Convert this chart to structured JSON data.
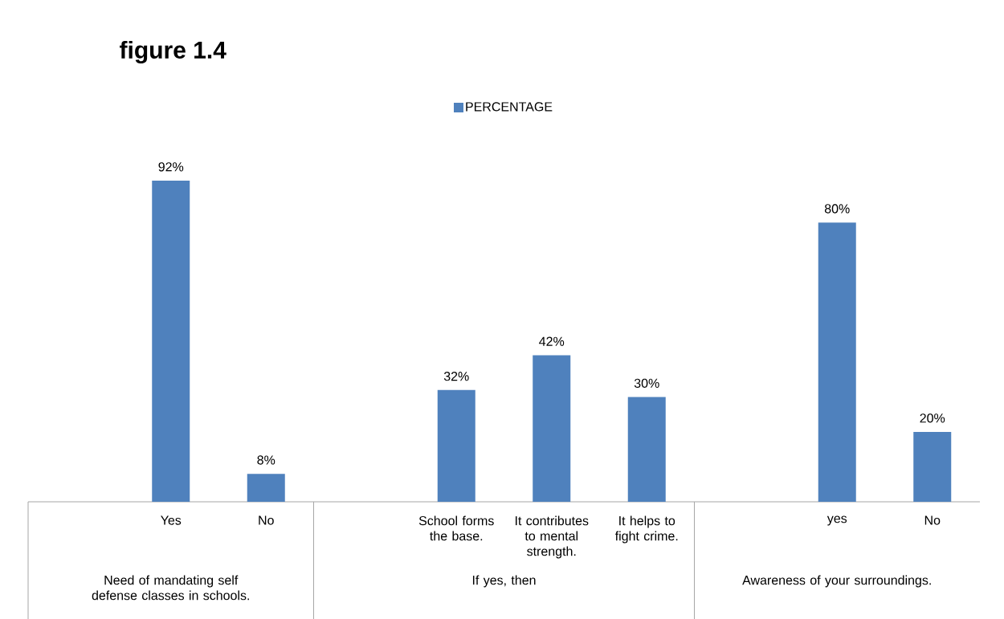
{
  "chart_data": {
    "type": "bar",
    "title": "figure 1.4",
    "categories": [
      null,
      "Yes",
      "No",
      null,
      "School forms the base.",
      "It contributes to mental strength.",
      "It helps to fight crime.",
      null,
      "yes",
      "No"
    ],
    "series": [
      {
        "name": "PERCENTAGE",
        "color": "#4f81bd",
        "values": [
          null,
          92,
          8,
          null,
          32,
          42,
          30,
          null,
          80,
          20
        ],
        "value_labels": [
          null,
          "92%",
          "8%",
          null,
          "32%",
          "42%",
          "30%",
          null,
          "80%",
          "20%"
        ]
      }
    ],
    "annotations": [
      "Need of mandating self defense classes in schools.",
      "If yes, then",
      "Awareness of your surroundings."
    ],
    "legend": "top"
  }
}
